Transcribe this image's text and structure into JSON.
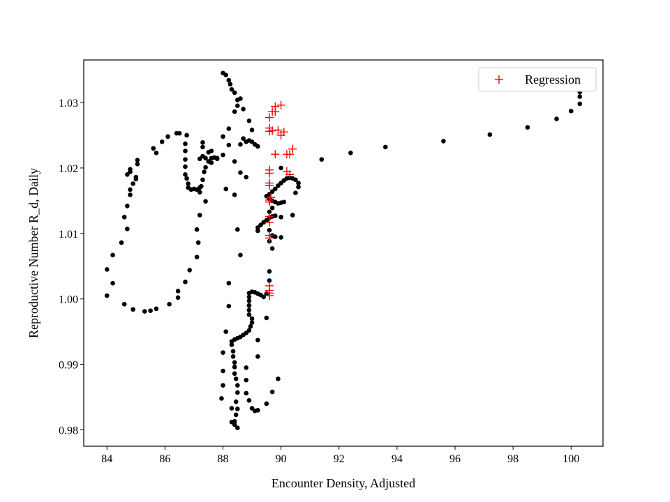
{
  "chart_data": {
    "type": "scatter",
    "xlabel": "Encounter Density, Adjusted",
    "ylabel": "Reproductive Number R_d, Daily",
    "xlim": [
      83.2,
      101.1
    ],
    "ylim": [
      0.9775,
      1.0365
    ],
    "xticks": [
      84,
      86,
      88,
      90,
      92,
      94,
      96,
      98,
      100
    ],
    "yticks": [
      0.98,
      0.99,
      1.0,
      1.01,
      1.02,
      1.03
    ],
    "ytick_labels": [
      "0.98",
      "0.99",
      "1.00",
      "1.01",
      "1.02",
      "1.03"
    ],
    "grid": false,
    "legend": {
      "position": "top-right",
      "entries": [
        "Regression"
      ]
    },
    "series": [
      {
        "marker": "circle",
        "color": "#000000",
        "points": [
          [
            100.1,
            1.032
          ],
          [
            100.3,
            1.0316
          ],
          [
            100.3,
            1.0309
          ],
          [
            100.3,
            1.0298
          ],
          [
            100.0,
            1.0287
          ],
          [
            99.5,
            1.0275
          ],
          [
            98.5,
            1.0262
          ],
          [
            97.2,
            1.0251
          ],
          [
            95.6,
            1.0241
          ],
          [
            93.6,
            1.0232
          ],
          [
            92.4,
            1.0223
          ],
          [
            91.4,
            1.0213
          ],
          [
            90.6,
            1.0177
          ],
          [
            90.6,
            1.0171
          ],
          [
            90.5,
            1.0182
          ],
          [
            90.4,
            1.0184
          ],
          [
            90.3,
            1.0185
          ],
          [
            90.2,
            1.0184
          ],
          [
            90.1,
            1.0181
          ],
          [
            90.0,
            1.0177
          ],
          [
            89.9,
            1.0173
          ],
          [
            89.8,
            1.0168
          ],
          [
            89.7,
            1.0164
          ],
          [
            89.6,
            1.016
          ],
          [
            89.5,
            1.0157
          ],
          [
            89.6,
            1.0153
          ],
          [
            89.7,
            1.015
          ],
          [
            89.8,
            1.0148
          ],
          [
            89.9,
            1.0146
          ],
          [
            90.0,
            1.0147
          ],
          [
            90.1,
            1.0148
          ],
          [
            90.4,
            1.0128
          ],
          [
            90.5,
            1.0162
          ],
          [
            90.0,
            1.02
          ],
          [
            89.7,
            1.0139
          ],
          [
            89.6,
            1.0133
          ],
          [
            89.7,
            1.0126
          ],
          [
            89.8,
            1.0127
          ],
          [
            90.0,
            1.0125
          ],
          [
            89.6,
            1.0124
          ],
          [
            89.5,
            1.012
          ],
          [
            89.4,
            1.0117
          ],
          [
            89.3,
            1.0113
          ],
          [
            89.2,
            1.0109
          ],
          [
            89.2,
            1.0104
          ],
          [
            89.6,
            1.0105
          ],
          [
            89.7,
            1.0097
          ],
          [
            89.8,
            1.0095
          ],
          [
            90.0,
            1.0094
          ],
          [
            89.6,
            1.0088
          ],
          [
            89.7,
            1.0077
          ],
          [
            89.6,
            1.0042
          ],
          [
            89.6,
            1.0028
          ],
          [
            89.5,
            1.0008
          ],
          [
            89.4,
            1.0003
          ],
          [
            89.3,
            1.0006
          ],
          [
            89.2,
            1.0008
          ],
          [
            89.1,
            1.001
          ],
          [
            89.0,
            1.0011
          ],
          [
            88.9,
            1.0009
          ],
          [
            88.9,
            1.0003
          ],
          [
            88.9,
            0.9997
          ],
          [
            88.9,
            0.999
          ],
          [
            88.9,
            0.9983
          ],
          [
            88.9,
            0.9976
          ],
          [
            89.0,
            0.997
          ],
          [
            89.0,
            0.9964
          ],
          [
            88.95,
            0.9958
          ],
          [
            88.9,
            0.9952
          ],
          [
            88.8,
            0.9948
          ],
          [
            88.7,
            0.9945
          ],
          [
            88.6,
            0.9942
          ],
          [
            88.5,
            0.994
          ],
          [
            88.4,
            0.9938
          ],
          [
            88.3,
            0.9935
          ],
          [
            88.3,
            0.993
          ],
          [
            88.35,
            0.992
          ],
          [
            88.35,
            0.9912
          ],
          [
            88.4,
            0.9903
          ],
          [
            88.4,
            0.9896
          ],
          [
            88.4,
            0.9886
          ],
          [
            88.45,
            0.9878
          ],
          [
            88.5,
            0.9868
          ],
          [
            88.5,
            0.9857
          ],
          [
            88.45,
            0.9843
          ],
          [
            88.5,
            0.9832
          ],
          [
            88.45,
            0.9823
          ],
          [
            88.4,
            0.9813
          ],
          [
            88.4,
            0.9808
          ],
          [
            88.5,
            0.9803
          ],
          [
            88.3,
            0.9812
          ],
          [
            88.3,
            0.9833
          ],
          [
            88.1,
            0.995
          ],
          [
            88.0,
            0.9918
          ],
          [
            88.0,
            0.989
          ],
          [
            88.0,
            0.9868
          ],
          [
            87.95,
            0.9848
          ],
          [
            88.2,
            0.9989
          ],
          [
            88.2,
            1.0024
          ],
          [
            88.8,
            0.9895
          ],
          [
            88.8,
            0.9876
          ],
          [
            88.8,
            0.9856
          ],
          [
            88.9,
            0.9845
          ],
          [
            89.0,
            0.9833
          ],
          [
            89.1,
            0.9829
          ],
          [
            89.2,
            0.983
          ],
          [
            89.7,
            0.9858
          ],
          [
            89.5,
            0.984
          ],
          [
            89.9,
            0.9878
          ],
          [
            89.2,
            0.9937
          ],
          [
            89.2,
            0.9912
          ],
          [
            89.5,
            0.9971
          ],
          [
            88.6,
            1.0067
          ],
          [
            88.5,
            1.0106
          ],
          [
            88.0,
            1.0345
          ],
          [
            88.1,
            1.0342
          ],
          [
            88.2,
            1.0334
          ],
          [
            88.25,
            1.0328
          ],
          [
            88.3,
            1.032
          ],
          [
            88.4,
            1.0315
          ],
          [
            88.5,
            1.0304
          ],
          [
            88.6,
            1.0306
          ],
          [
            88.4,
            1.0286
          ],
          [
            88.2,
            1.026
          ],
          [
            88.0,
            1.0248
          ],
          [
            88.2,
            1.0235
          ],
          [
            88.0,
            1.022
          ],
          [
            87.8,
            1.0214
          ],
          [
            87.6,
            1.0208
          ],
          [
            87.6,
            1.0215
          ],
          [
            87.5,
            1.021
          ],
          [
            87.4,
            1.0201
          ],
          [
            87.35,
            1.0194
          ],
          [
            87.3,
            1.0182
          ],
          [
            87.25,
            1.0172
          ],
          [
            87.2,
            1.0163
          ],
          [
            87.1,
            1.0167
          ],
          [
            87.0,
            1.0168
          ],
          [
            86.9,
            1.0167
          ],
          [
            86.8,
            1.017
          ],
          [
            86.8,
            1.0176
          ],
          [
            86.75,
            1.0184
          ],
          [
            86.7,
            1.019
          ],
          [
            86.7,
            1.0202
          ],
          [
            86.7,
            1.0213
          ],
          [
            86.7,
            1.0226
          ],
          [
            86.7,
            1.0237
          ],
          [
            86.75,
            1.025
          ],
          [
            86.5,
            1.0253
          ],
          [
            86.4,
            1.0253
          ],
          [
            86.1,
            1.0248
          ],
          [
            85.9,
            1.024
          ],
          [
            85.6,
            1.023
          ],
          [
            85.7,
            1.0223
          ],
          [
            85.05,
            1.0212
          ],
          [
            85.05,
            1.0206
          ],
          [
            84.8,
            1.0198
          ],
          [
            84.8,
            1.0194
          ],
          [
            84.7,
            1.019
          ],
          [
            85.0,
            1.0186
          ],
          [
            85.0,
            1.0183
          ],
          [
            84.9,
            1.0176
          ],
          [
            84.8,
            1.0167
          ],
          [
            84.8,
            1.0159
          ],
          [
            84.7,
            1.0142
          ],
          [
            84.6,
            1.0125
          ],
          [
            84.7,
            1.0107
          ],
          [
            84.5,
            1.0086
          ],
          [
            84.2,
            1.0067
          ],
          [
            84.0,
            1.0045
          ],
          [
            84.2,
            1.0024
          ],
          [
            84.0,
            1.0005
          ],
          [
            84.6,
            0.9992
          ],
          [
            84.9,
            0.9984
          ],
          [
            85.3,
            0.9981
          ],
          [
            85.5,
            0.9982
          ],
          [
            85.7,
            0.9985
          ],
          [
            86.15,
            0.9992
          ],
          [
            86.45,
            1.0002
          ],
          [
            86.45,
            1.0012
          ],
          [
            86.7,
            1.0026
          ],
          [
            86.85,
            1.0044
          ],
          [
            87.1,
            1.0064
          ],
          [
            87.15,
            1.0086
          ],
          [
            87.1,
            1.0106
          ],
          [
            87.2,
            1.0128
          ],
          [
            87.4,
            1.0149
          ],
          [
            87.2,
            1.017
          ],
          [
            87.2,
            1.0214
          ],
          [
            87.3,
            1.0218
          ],
          [
            87.4,
            1.0215
          ],
          [
            87.5,
            1.0224
          ],
          [
            87.6,
            1.0226
          ],
          [
            87.3,
            1.0232
          ],
          [
            87.3,
            1.0239
          ],
          [
            87.7,
            1.0216
          ],
          [
            87.8,
            1.0215
          ],
          [
            88.1,
            1.0168
          ],
          [
            88.4,
            1.0159
          ],
          [
            88.8,
            1.0186
          ],
          [
            88.8,
            1.024
          ],
          [
            88.9,
            1.0242
          ],
          [
            89.0,
            1.024
          ],
          [
            89.1,
            1.0236
          ],
          [
            89.2,
            1.0233
          ],
          [
            89.0,
            1.0258
          ],
          [
            88.9,
            1.0272
          ],
          [
            88.7,
            1.029
          ],
          [
            88.5,
            1.0295
          ],
          [
            88.6,
            1.0236
          ],
          [
            88.4,
            1.021
          ],
          [
            88.6,
            1.0193
          ],
          [
            88.7,
            1.0245
          ]
        ]
      },
      {
        "name": "Regression",
        "marker": "plus",
        "color": "#ff0000",
        "points": [
          [
            90.0,
            1.0296
          ],
          [
            89.8,
            1.0294
          ],
          [
            89.7,
            1.0286
          ],
          [
            89.8,
            1.0286
          ],
          [
            89.6,
            1.0277
          ],
          [
            89.6,
            1.0261
          ],
          [
            89.6,
            1.0256
          ],
          [
            89.7,
            1.0257
          ],
          [
            89.9,
            1.0258
          ],
          [
            90.0,
            1.025
          ],
          [
            90.1,
            1.0255
          ],
          [
            89.8,
            1.0221
          ],
          [
            90.2,
            1.0221
          ],
          [
            90.3,
            1.0221
          ],
          [
            90.4,
            1.0229
          ],
          [
            89.6,
            1.0197
          ],
          [
            89.6,
            1.0192
          ],
          [
            90.2,
            1.0195
          ],
          [
            90.3,
            1.019
          ],
          [
            89.6,
            1.0177
          ],
          [
            89.6,
            1.0173
          ],
          [
            89.65,
            1.0155
          ],
          [
            89.6,
            1.0151
          ],
          [
            89.6,
            1.0148
          ],
          [
            89.6,
            1.0126
          ],
          [
            89.6,
            1.0117
          ],
          [
            89.6,
            1.0097
          ],
          [
            89.6,
            1.0093
          ],
          [
            89.6,
            1.002
          ],
          [
            89.6,
            1.0013
          ],
          [
            89.6,
            1.0009
          ],
          [
            89.6,
            1.0005
          ]
        ]
      }
    ]
  }
}
